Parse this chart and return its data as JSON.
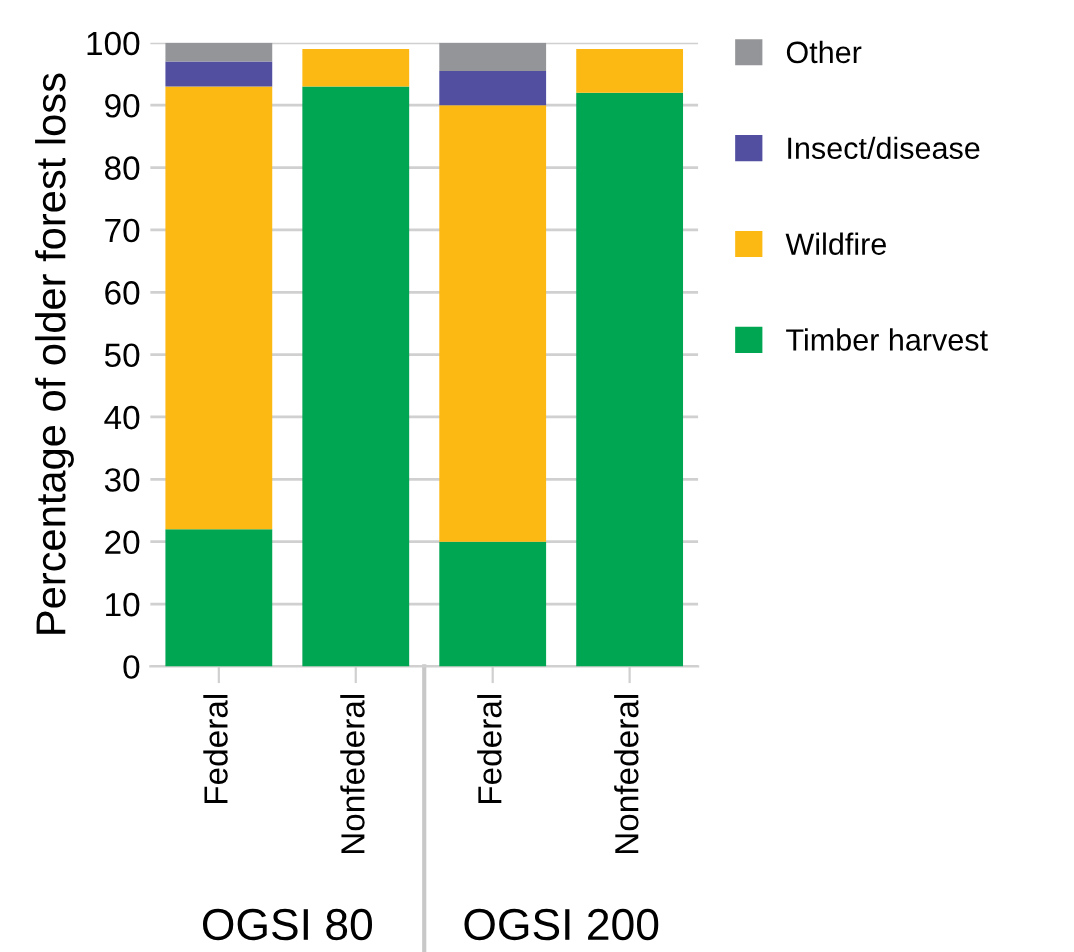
{
  "chart_data": {
    "type": "bar",
    "stacked": true,
    "ylabel": "Percentage of older forest loss",
    "categories": [
      "Federal",
      "Nonfederal",
      "Federal",
      "Nonfederal"
    ],
    "series": [
      {
        "name": "Timber harvest",
        "color": "#00a651",
        "values": [
          22,
          93,
          20,
          92
        ]
      },
      {
        "name": "Wildfire",
        "color": "#fdb913",
        "values": [
          71,
          6,
          70,
          7
        ]
      },
      {
        "name": "Insect/disease",
        "color": "#524fa1",
        "values": [
          4,
          0,
          5.5,
          0
        ]
      },
      {
        "name": "Other",
        "color": "#939598",
        "values": [
          3,
          0,
          4.5,
          0
        ]
      }
    ],
    "ylim": [
      0,
      100
    ],
    "yticks": [
      0,
      10,
      20,
      30,
      40,
      50,
      60,
      70,
      80,
      90,
      100
    ],
    "grid": "y",
    "legend": "right",
    "annotations": [
      "OGSI 80",
      "OGSI 200"
    ]
  }
}
